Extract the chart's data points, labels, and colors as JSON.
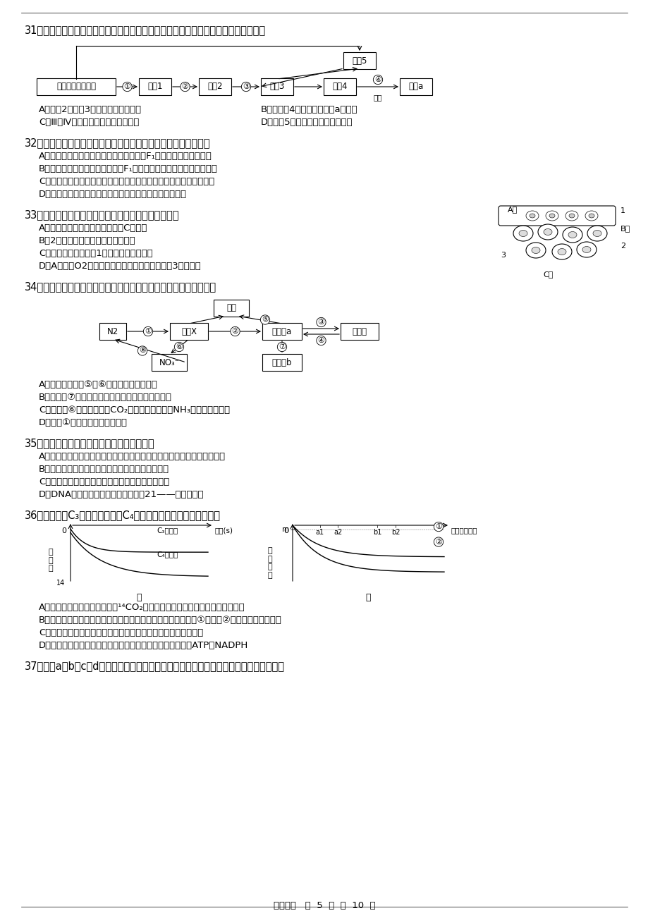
{
  "background": "#ffffff",
  "q31": "31、下图表示人体通过体液免疫消灯破伤风杆菌外毒素的过程，下列相关叙述错误的是",
  "q31_opts": [
    "A．细胞2、细胞3均起源于造血干细胞",
    "B．仅细胞4中含有合成物质a的基因",
    "C．Ⅲ、Ⅳ过程与细胞膜上蛋白质有关",
    "D．细胞5属于保留分裂能力的细胞"
  ],
  "q32": "32、下列关于植物体细胞杂交或植物细胞质遗传的叙述，错误的是",
  "q32_opts": [
    "A．两个不同品种的紫茉莉杂交，正交反交F₁的枝条颜色表现型一致",
    "B．两个不同品种的紫茉莉杂交，F₁的遗传物质来自母本的多于父本的",
    "C．利用植物体细胞杂交技术可以克服生殖隔离的限制，培育远缘杂种",
    "D．不同植物原生质体融合的过程属于植物体细胞杂交过程"
  ],
  "q33": "33、右图是人体局部内环境示意图，以下叙述正确的是",
  "q33_opts": [
    "A．某人长期营养不良，则会引起C液减少",
    "B．2结构的细胞所处的内环境为淡巴",
    "C．人发生过敏反应，1结构的通透性会升高",
    "D．A液中的O2进入组织细胞被利用处至少要通过3层膜结构"
  ],
  "q34": "34、下图表示几种相关物质之间的部分转化关系，下列叙述正确的是",
  "q34_opts": [
    "A．疏松的土壤对⑤和⑥的影响都是促进作用",
    "B．经途径⑦可以使细胞内氨基酸的种类和数量增多",
    "C．能完成⑥过程的生物，CO₂可以作为其碳源，NH₃可以作为其能源",
    "D．图中①过程只能在细胞内进行"
  ],
  "q35": "35、下列关于生物工程的叙述中，不正确的是",
  "q35_opts": [
    "A．杂交癀细胞、金黄色葡萄球菌、圆褐固氮菌都可用选择培养基筛选出来",
    "B．标记基因可用于检测运载体是否被导入受体细胞",
    "C．动物细胞的大规模培养可用于生产某些病毒疫苗",
    "D．DNA探针可用于检测苯丙酮尿症和21——三体综合征"
  ],
  "q36": "36、下列有关C₃植物（小麦）和C₄植物（玉米）的叙述，错误的是",
  "q36_opts": [
    "A、光照下，供给离体叶片少量¹⁴CO₂，玉米叶片会发生甲图的变化而小麦不会",
    "B、乙图表示同一植物在相同光照条件下的光合产量曲线，曲线①和曲线②可能是环境温度不同",
    "C、玉米光合作用合成淠粉的场所既有维管束鞘细胞又有叶肉细胞",
    "D、玉米、小麦的光反应都发生在类囊体的薄膜上，都能合成ATP和NADPH"
  ],
  "q37": "37、以下a、b、c、d四图分别是四种生物的细胞结构图，与之有关的下列叙述中正确的是",
  "footer": "生物试卷   第  5  页  共  10  页"
}
